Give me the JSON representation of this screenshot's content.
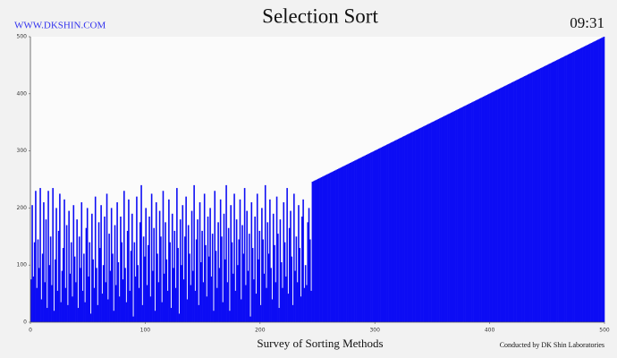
{
  "site": "WWW.DKSHIN.COM",
  "clock": "09:31",
  "credit": "Conducted by DK Shin Laboratories",
  "chart_data": {
    "type": "bar",
    "title": "Selection Sort",
    "x_label": "Survey of Sorting Methods",
    "color": "#0c0cf4",
    "xlim": [
      0,
      500
    ],
    "ylim": [
      0,
      500
    ],
    "xticks": [
      0,
      100,
      200,
      300,
      400,
      500
    ],
    "yticks": [
      0,
      100,
      200,
      300,
      400,
      500
    ],
    "values": [
      75,
      205,
      80,
      140,
      230,
      60,
      145,
      95,
      235,
      40,
      120,
      210,
      70,
      180,
      25,
      230,
      100,
      150,
      65,
      235,
      20,
      110,
      200,
      55,
      160,
      225,
      35,
      90,
      130,
      215,
      60,
      170,
      30,
      195,
      85,
      140,
      45,
      205,
      115,
      70,
      180,
      25,
      150,
      95,
      210,
      55,
      120,
      35,
      165,
      200,
      80,
      140,
      15,
      190,
      110,
      60,
      220,
      95,
      30,
      175,
      130,
      205,
      50,
      100,
      185,
      70,
      225,
      40,
      155,
      90,
      200,
      120,
      20,
      170,
      65,
      210,
      105,
      45,
      185,
      140,
      75,
      230,
      95,
      35,
      160,
      215,
      55,
      125,
      190,
      10,
      140,
      80,
      220,
      100,
      60,
      175,
      240,
      30,
      150,
      115,
      200,
      65,
      135,
      185,
      45,
      225,
      90,
      165,
      20,
      210,
      120,
      70,
      195,
      150,
      35,
      230,
      85,
      175,
      110,
      55,
      215,
      140,
      25,
      190,
      95,
      160,
      60,
      235,
      130,
      15,
      180,
      100,
      205,
      75,
      150,
      220,
      40,
      170,
      120,
      65,
      195,
      90,
      240,
      55,
      145,
      180,
      30,
      210,
      105,
      160,
      70,
      225,
      135,
      45,
      185,
      115,
      200,
      80,
      155,
      20,
      230,
      125,
      60,
      175,
      95,
      215,
      150,
      35,
      190,
      110,
      240,
      70,
      165,
      20,
      205,
      140,
      85,
      225,
      55,
      180,
      100,
      145,
      215,
      40,
      170,
      120,
      235,
      65,
      195,
      90,
      155,
      10,
      210,
      130,
      75,
      185,
      50,
      225,
      110,
      160,
      30,
      200,
      145,
      85,
      240,
      60,
      175,
      120,
      215,
      95,
      40,
      190,
      135,
      70,
      220,
      155,
      25,
      180,
      105,
      60,
      210,
      140,
      80,
      235,
      50,
      165,
      195,
      115,
      30,
      225,
      90,
      150,
      70,
      205,
      130,
      45,
      185,
      215,
      60,
      100,
      65,
      175,
      200,
      145,
      55,
      246,
      247,
      248,
      249,
      250,
      251,
      252,
      253,
      254,
      255,
      256,
      257,
      258,
      259,
      260,
      261,
      262,
      263,
      264,
      265,
      266,
      267,
      268,
      269,
      270,
      271,
      272,
      273,
      274,
      275,
      276,
      277,
      278,
      279,
      280,
      281,
      282,
      283,
      284,
      285,
      286,
      287,
      288,
      289,
      290,
      291,
      292,
      293,
      294,
      295,
      296,
      297,
      298,
      299,
      300,
      301,
      302,
      303,
      304,
      305,
      306,
      307,
      308,
      309,
      310,
      311,
      312,
      313,
      314,
      315,
      316,
      317,
      318,
      319,
      320,
      321,
      322,
      323,
      324,
      325,
      326,
      327,
      328,
      329,
      330,
      331,
      332,
      333,
      334,
      335,
      336,
      337,
      338,
      339,
      340,
      341,
      342,
      343,
      344,
      345,
      346,
      347,
      348,
      349,
      350,
      351,
      352,
      353,
      354,
      355,
      356,
      357,
      358,
      359,
      360,
      361,
      362,
      363,
      364,
      365,
      366,
      367,
      368,
      369,
      370,
      371,
      372,
      373,
      374,
      375,
      376,
      377,
      378,
      379,
      380,
      381,
      382,
      383,
      384,
      385,
      386,
      387,
      388,
      389,
      390,
      391,
      392,
      393,
      394,
      395,
      396,
      397,
      398,
      399,
      400,
      401,
      402,
      403,
      404,
      405,
      406,
      407,
      408,
      409,
      410,
      411,
      412,
      413,
      414,
      415,
      416,
      417,
      418,
      419,
      420,
      421,
      422,
      423,
      424,
      425,
      426,
      427,
      428,
      429,
      430,
      431,
      432,
      433,
      434,
      435,
      436,
      437,
      438,
      439,
      440,
      441,
      442,
      443,
      444,
      445,
      446,
      447,
      448,
      449,
      450,
      451,
      452,
      453,
      454,
      455,
      456,
      457,
      458,
      459,
      460,
      461,
      462,
      463,
      464,
      465,
      466,
      467,
      468,
      469,
      470,
      471,
      472,
      473,
      474,
      475,
      476,
      477,
      478,
      479,
      480,
      481,
      482,
      483,
      484,
      485,
      486,
      487,
      488,
      489,
      490,
      491,
      492,
      493,
      494,
      495,
      496,
      497,
      498,
      499,
      500
    ]
  }
}
